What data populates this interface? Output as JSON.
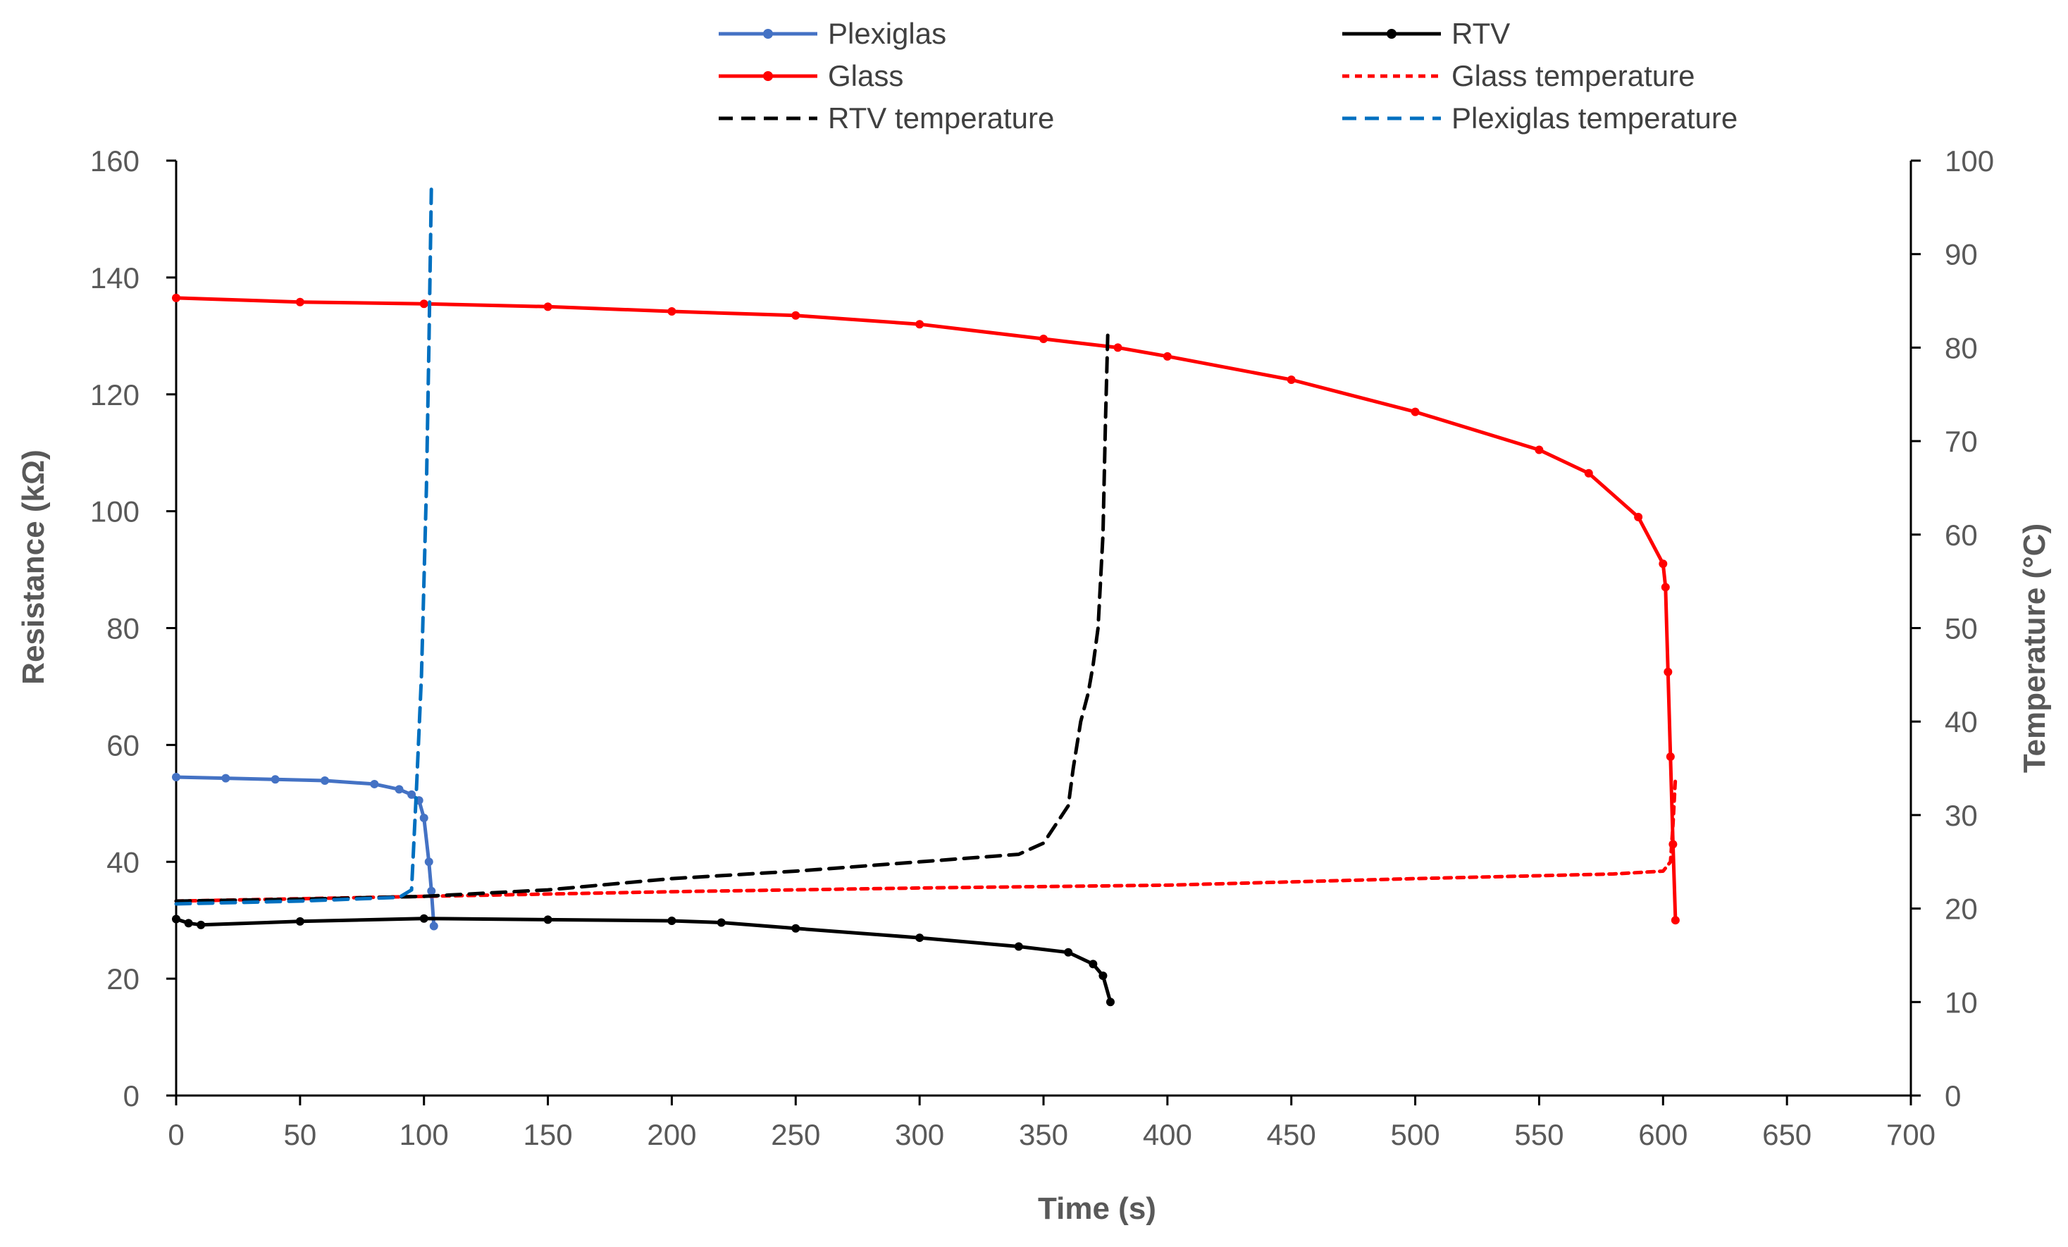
{
  "chart_data": {
    "type": "line",
    "title": "",
    "xlabel": "Time (s)",
    "ylabel": "Resistance (kΩ)",
    "y2label": "Temperature (°C)",
    "xlim": [
      0,
      700
    ],
    "ylim": [
      0,
      160
    ],
    "y2lim": [
      0,
      100
    ],
    "xticks": [
      "0",
      "50",
      "100",
      "150",
      "200",
      "250",
      "300",
      "350",
      "400",
      "450",
      "500",
      "550",
      "600",
      "650",
      "700"
    ],
    "yticks": [
      "0",
      "20",
      "40",
      "60",
      "80",
      "100",
      "120",
      "140",
      "160"
    ],
    "y2ticks": [
      "0",
      "10",
      "20",
      "30",
      "40",
      "50",
      "60",
      "70",
      "80",
      "90",
      "100"
    ],
    "grid": false,
    "legend_position": "top",
    "series": [
      {
        "name": "Plexiglas",
        "axis": "left",
        "style": "solid-markers",
        "color": "#4472C4",
        "x": [
          0,
          20,
          40,
          60,
          80,
          90,
          95,
          98,
          100,
          102,
          103,
          104
        ],
        "y": [
          54.5,
          54.3,
          54.1,
          53.9,
          53.3,
          52.4,
          51.5,
          50.5,
          47.5,
          40.0,
          35.0,
          29.0
        ]
      },
      {
        "name": "RTV",
        "axis": "left",
        "style": "solid-markers",
        "color": "#000000",
        "x": [
          0,
          5,
          10,
          50,
          100,
          150,
          200,
          220,
          250,
          300,
          340,
          360,
          370,
          374,
          377
        ],
        "y": [
          30.2,
          29.5,
          29.2,
          29.8,
          30.3,
          30.1,
          29.9,
          29.6,
          28.6,
          27.0,
          25.5,
          24.5,
          22.5,
          20.5,
          16.0
        ]
      },
      {
        "name": "Glass",
        "axis": "left",
        "style": "solid-markers",
        "color": "#FF0000",
        "x": [
          0,
          50,
          100,
          150,
          200,
          250,
          300,
          350,
          380,
          400,
          450,
          500,
          550,
          570,
          590,
          600,
          601,
          602,
          603,
          604,
          605
        ],
        "y": [
          136.5,
          135.8,
          135.5,
          135.0,
          134.2,
          133.5,
          132.0,
          129.5,
          128.0,
          126.5,
          122.5,
          117.0,
          110.5,
          106.5,
          99.0,
          91.0,
          87.0,
          72.5,
          58.0,
          43.0,
          30.0
        ]
      },
      {
        "name": "Glass temperature",
        "axis": "right",
        "style": "dotted",
        "color": "#FF0000",
        "x": [
          0,
          100,
          200,
          300,
          400,
          500,
          580,
          600,
          603,
          604,
          605
        ],
        "y": [
          20.8,
          21.3,
          21.8,
          22.2,
          22.5,
          23.2,
          23.7,
          24.0,
          25.0,
          29.0,
          34.0
        ]
      },
      {
        "name": "RTV temperature",
        "axis": "right",
        "style": "dashed",
        "color": "#000000",
        "x": [
          0,
          50,
          100,
          150,
          200,
          250,
          300,
          340,
          350,
          360,
          362,
          365,
          368,
          370,
          372,
          374,
          375,
          376
        ],
        "y": [
          20.8,
          21.0,
          21.3,
          22.0,
          23.2,
          24.0,
          25.0,
          25.8,
          27.0,
          31.0,
          35.0,
          40.0,
          43.0,
          46.0,
          50.0,
          60.0,
          72.0,
          82.0
        ]
      },
      {
        "name": "Plexiglas temperature",
        "axis": "right",
        "style": "dashed",
        "color": "#0070C0",
        "x": [
          0,
          50,
          90,
          95,
          97,
          99,
          100,
          101,
          102,
          103
        ],
        "y": [
          20.5,
          20.8,
          21.2,
          22.0,
          33.0,
          45.0,
          55.0,
          65.0,
          80.0,
          97.5
        ]
      }
    ]
  }
}
